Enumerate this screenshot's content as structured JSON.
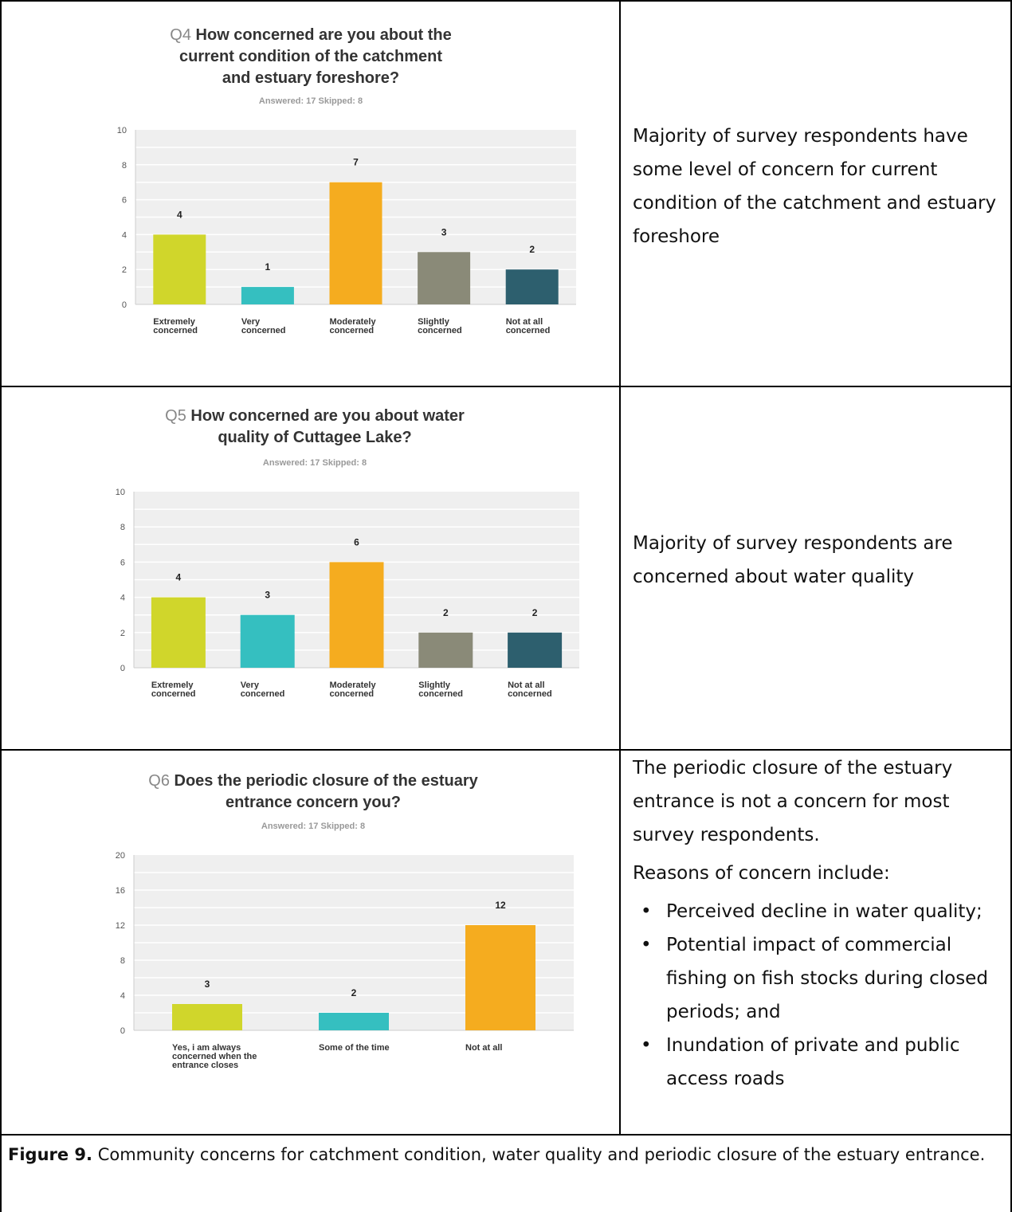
{
  "chart_data": [
    {
      "type": "bar",
      "question_number": "Q4",
      "title": "How concerned are you about the current condition of the catchment and estuary foreshore?",
      "answered": "Answered: 17",
      "skipped": "Skipped: 8",
      "categories": [
        "Extremely concerned",
        "Very concerned",
        "Moderately concerned",
        "Slightly concerned",
        "Not at all concerned"
      ],
      "values": [
        4,
        1,
        7,
        3,
        2
      ],
      "colors": [
        "#d0d62b",
        "#35bfc0",
        "#f5ac1f",
        "#8a8a78",
        "#2d5f6e"
      ],
      "ylim": [
        0,
        10
      ],
      "yticks": [
        "0",
        "2",
        "4",
        "6",
        "8",
        "10"
      ],
      "grid": true,
      "xlabel": "",
      "ylabel": ""
    },
    {
      "type": "bar",
      "question_number": "Q5",
      "title": "How concerned are you about water quality of Cuttagee Lake?",
      "answered": "Answered: 17",
      "skipped": "Skipped: 8",
      "categories": [
        "Extremely concerned",
        "Very concerned",
        "Moderately concerned",
        "Slightly concerned",
        "Not at all concerned"
      ],
      "values": [
        4,
        3,
        6,
        2,
        2
      ],
      "colors": [
        "#d0d62b",
        "#35bfc0",
        "#f5ac1f",
        "#8a8a78",
        "#2d5f6e"
      ],
      "ylim": [
        0,
        10
      ],
      "yticks": [
        "0",
        "2",
        "4",
        "6",
        "8",
        "10"
      ],
      "grid": true,
      "xlabel": "",
      "ylabel": ""
    },
    {
      "type": "bar",
      "question_number": "Q6",
      "title": "Does the periodic closure of the estuary entrance concern you?",
      "answered": "Answered: 17",
      "skipped": "Skipped: 8",
      "categories": [
        "Yes, i am always concerned when the entrance closes",
        "Some of the time",
        "Not at all"
      ],
      "values": [
        3,
        2,
        12
      ],
      "colors": [
        "#d0d62b",
        "#35bfc0",
        "#f5ac1f"
      ],
      "ylim": [
        0,
        20
      ],
      "yticks": [
        "0",
        "4",
        "8",
        "12",
        "16",
        "20"
      ],
      "grid": true,
      "xlabel": "",
      "ylabel": ""
    }
  ],
  "descriptions": {
    "q4": "Majority of survey respondents have some level of concern for current condition of the catchment and estuary foreshore",
    "q5": "Majority of survey respondents are concerned about water quality",
    "q6_intro": "The periodic closure of the estuary entrance is not a concern for most survey respondents.",
    "q6_reasons_heading": "Reasons of concern include:",
    "q6_reasons": [
      "Perceived decline in water quality;",
      "Potential impact of commercial fishing on fish stocks during closed periods; and",
      "Inundation of private and public access roads"
    ]
  },
  "caption": {
    "label": "Figure 9.",
    "text": "Community concerns for catchment condition, water quality and periodic closure of the estuary entrance."
  },
  "colors": {
    "question_number": "#888888",
    "title": "#333333",
    "meta": "#999999",
    "grid": "#ffffff",
    "plot_bg": "#efefef",
    "axis": "#cccccc"
  }
}
